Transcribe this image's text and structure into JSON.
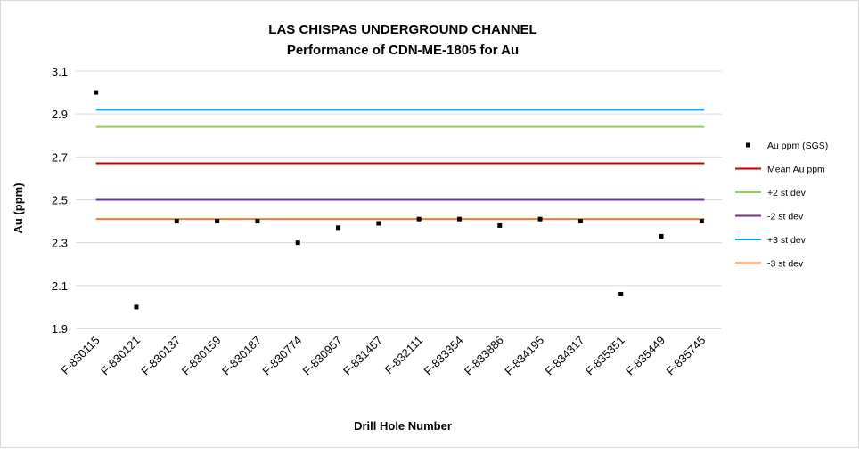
{
  "chart_data": {
    "type": "scatter",
    "title": "LAS CHISPAS UNDERGROUND CHANNEL",
    "subtitle": "Performance of CDN-ME-1805 for Au",
    "xlabel": "Drill Hole Number",
    "ylabel": "Au (ppm)",
    "ylim": [
      1.9,
      3.1
    ],
    "yticks": [
      "1.9",
      "2.1",
      "2.3",
      "2.5",
      "2.7",
      "2.9",
      "3.1"
    ],
    "grid": true,
    "legend_position": "right",
    "categories": [
      "F-830115",
      "F-830121",
      "F-830137",
      "F-830159",
      "F-830187",
      "F-830774",
      "F-830957",
      "F-831457",
      "F-832111",
      "F-833354",
      "F-833886",
      "F-834195",
      "F-834317",
      "F-835351",
      "F-835449",
      "F-835745"
    ],
    "series": [
      {
        "name": "Au ppm (SGS)",
        "kind": "points",
        "color": "#000000",
        "values": [
          3.0,
          2.0,
          2.4,
          2.4,
          2.4,
          2.3,
          2.37,
          2.39,
          2.41,
          2.41,
          2.38,
          2.41,
          2.4,
          2.06,
          2.33,
          2.4
        ]
      },
      {
        "name": "Mean Au ppm",
        "kind": "hline",
        "color": "#C00000",
        "value": 2.67
      },
      {
        "name": "+2 st dev",
        "kind": "hline",
        "color": "#92D050",
        "value": 2.84
      },
      {
        "name": "-2 st dev",
        "kind": "hline",
        "color": "#7030A0",
        "value": 2.5
      },
      {
        "name": "+3 st dev",
        "kind": "hline",
        "color": "#00B0F0",
        "value": 2.92
      },
      {
        "name": "-3 st dev",
        "kind": "hline",
        "color": "#ED7D31",
        "value": 2.41
      }
    ]
  }
}
